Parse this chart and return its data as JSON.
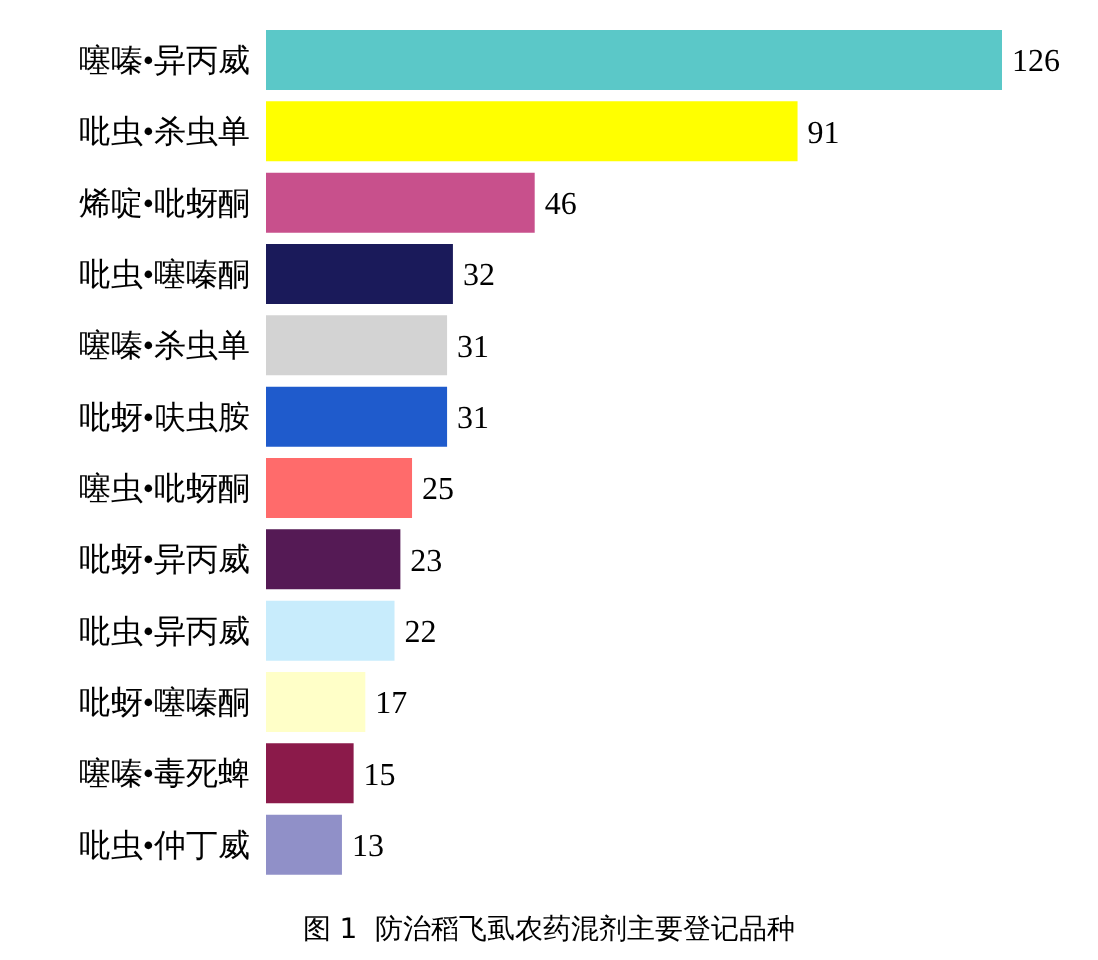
{
  "chart_data": {
    "type": "bar",
    "orientation": "horizontal",
    "title": "图 1  防治稻飞虱农药混剂主要登记品种",
    "categories": [
      "噻嗪•异丙威",
      "吡虫•杀虫单",
      "烯啶•吡蚜酮",
      "吡虫•噻嗪酮",
      "噻嗪•杀虫单",
      "吡蚜•呋虫胺",
      "噻虫•吡蚜酮",
      "吡蚜•异丙威",
      "吡虫•异丙威",
      "吡蚜•噻嗪酮",
      "噻嗪•毒死蜱",
      "吡虫•仲丁威"
    ],
    "values": [
      126,
      91,
      46,
      32,
      31,
      31,
      25,
      23,
      22,
      17,
      15,
      13
    ],
    "colors": [
      "#5bc8c8",
      "#ffff00",
      "#c8508c",
      "#1a1a5a",
      "#d3d3d3",
      "#1f5bcc",
      "#ff6b6b",
      "#551a55",
      "#c8ecfc",
      "#ffffc8",
      "#8b1a4a",
      "#9090c8"
    ],
    "data_labels": true
  }
}
